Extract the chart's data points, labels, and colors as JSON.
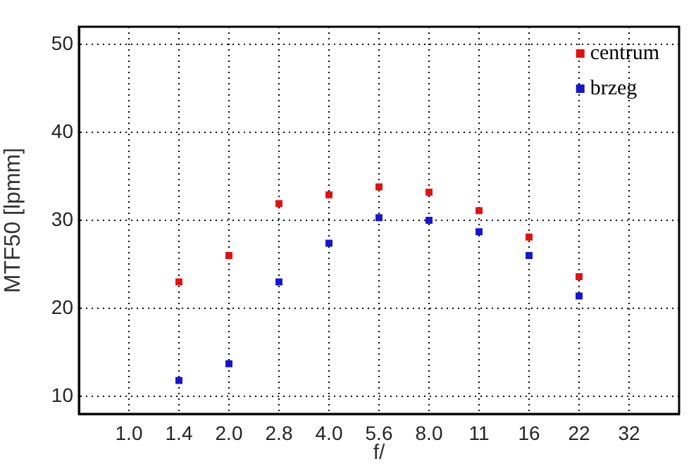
{
  "chart_data": {
    "type": "scatter",
    "xlabel": "f/",
    "ylabel": "MTF50 [lpmm]",
    "categories": [
      null,
      "1.0",
      "1.4",
      "2.0",
      "2.8",
      "4.0",
      "5.6",
      "8.0",
      "11",
      "16",
      "22",
      "32",
      null
    ],
    "series": [
      {
        "name": "centrum",
        "color": "#e41010",
        "values": [
          null,
          null,
          23.0,
          26.0,
          31.9,
          32.9,
          33.8,
          33.2,
          31.1,
          28.1,
          23.6,
          null,
          null
        ]
      },
      {
        "name": "brzeg",
        "color": "#1414d2",
        "values": [
          null,
          null,
          11.8,
          13.7,
          23.0,
          27.4,
          30.3,
          30.0,
          28.7,
          26.0,
          21.4,
          null,
          null
        ]
      }
    ],
    "ylim": [
      8,
      52
    ],
    "yticks": [
      10,
      20,
      30,
      40,
      50
    ],
    "grid": true,
    "legend": "top right",
    "marker": "square"
  }
}
